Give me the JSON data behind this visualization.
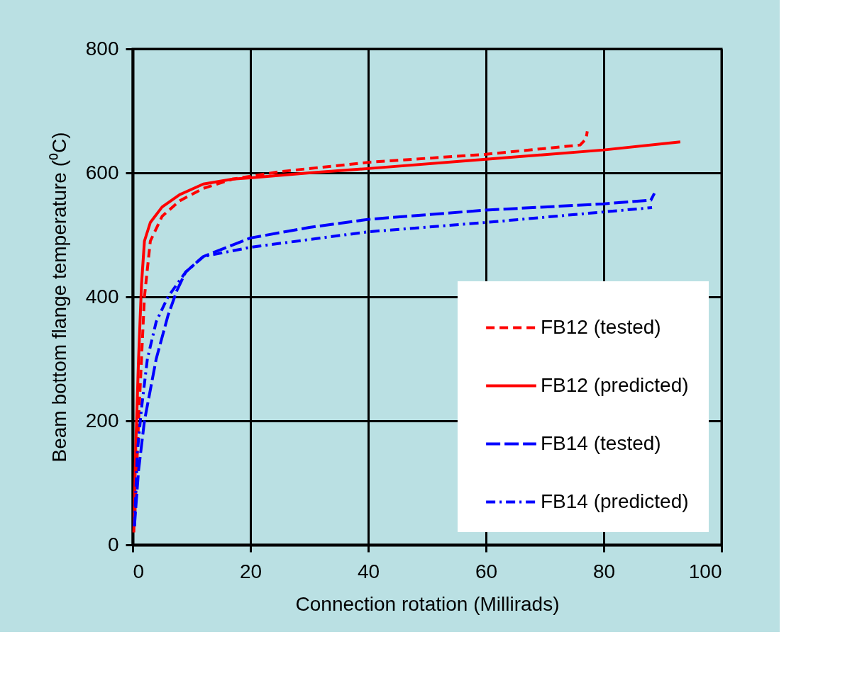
{
  "chart_data": {
    "type": "line",
    "xlabel": "Connection rotation (Millirads)",
    "ylabel": "Beam bottom flange temperature (⁰C)",
    "xlim": [
      0,
      100
    ],
    "xticks": [
      0,
      20,
      40,
      60,
      80,
      100
    ],
    "ylim": [
      0,
      800
    ],
    "yticks": [
      0,
      200,
      400,
      600,
      800
    ],
    "grid": true,
    "legend": "bottom right",
    "marker": "none",
    "series": [
      {
        "name": "FB12 (tested)",
        "color": "#ff0000",
        "line_style": "dashed",
        "x": [
          0.3,
          1,
          2,
          3,
          5,
          8,
          12,
          17,
          25,
          40,
          60,
          76,
          77,
          77.2
        ],
        "values": [
          30,
          200,
          400,
          490,
          530,
          555,
          575,
          590,
          602,
          617,
          630,
          645,
          655,
          667
        ]
      },
      {
        "name": "FB12 (predicted)",
        "color": "#ff0000",
        "line_style": "solid",
        "x": [
          0.2,
          0.5,
          1,
          1.5,
          2,
          3,
          5,
          8,
          12,
          17,
          20,
          30,
          40,
          60,
          80,
          93
        ],
        "values": [
          20,
          150,
          300,
          420,
          490,
          520,
          545,
          565,
          582,
          590,
          592,
          600,
          607,
          622,
          637,
          650
        ]
      },
      {
        "name": "FB14 (tested)",
        "color": "#0000ff",
        "line_style": "longdashed",
        "x": [
          0.3,
          1,
          2,
          4,
          6,
          7.5,
          9,
          12,
          20,
          30,
          40,
          60,
          80,
          88,
          88.6
        ],
        "values": [
          30,
          120,
          200,
          300,
          370,
          410,
          440,
          465,
          495,
          512,
          525,
          540,
          550,
          556,
          567
        ]
      },
      {
        "name": "FB14 (predicted)",
        "color": "#0000ff",
        "line_style": "dashdot",
        "x": [
          0.3,
          0.8,
          1.5,
          2.5,
          4,
          6,
          9,
          12,
          20,
          40,
          60,
          88.2
        ],
        "values": [
          30,
          150,
          220,
          300,
          360,
          400,
          440,
          465,
          480,
          505,
          520,
          544
        ]
      }
    ]
  }
}
